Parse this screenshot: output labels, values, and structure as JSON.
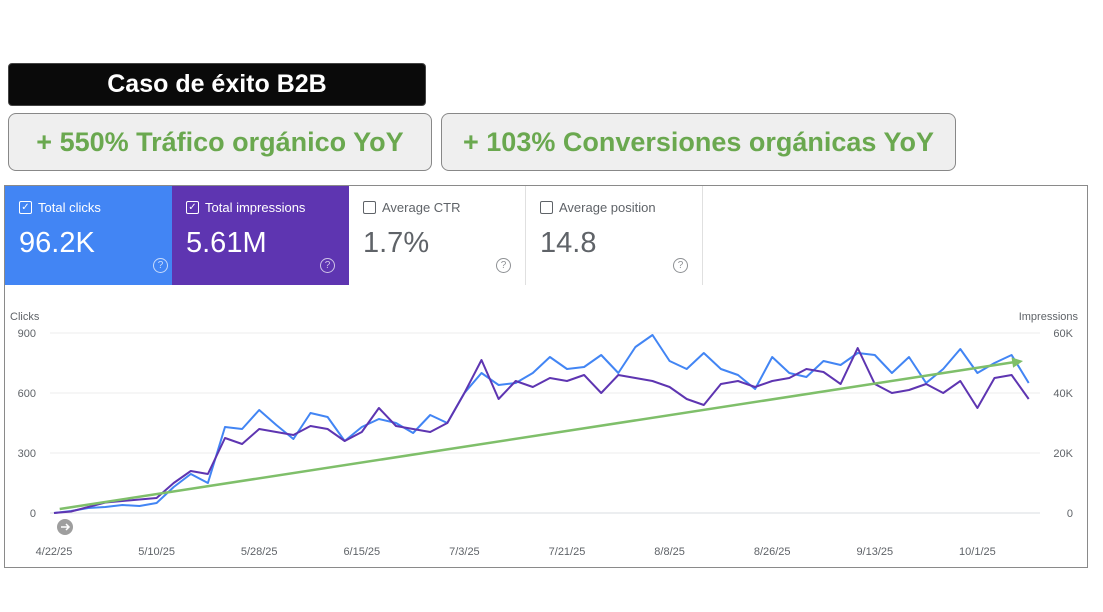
{
  "banner": {
    "title": "Caso de éxito B2B"
  },
  "kpis": [
    "+ 550% Tráfico orgánico YoY",
    "+ 103% Conversiones orgánicas YoY"
  ],
  "metrics": [
    {
      "label": "Total clicks",
      "value": "96.2K",
      "checked": true,
      "color": "#4285f4"
    },
    {
      "label": "Total impressions",
      "value": "5.61M",
      "checked": true,
      "color": "#5e35b1"
    },
    {
      "label": "Average CTR",
      "value": "1.7%",
      "checked": false
    },
    {
      "label": "Average position",
      "value": "14.8",
      "checked": false
    }
  ],
  "chart_data": {
    "type": "line",
    "ylabel": "Clicks",
    "y2label": "Impressions",
    "ylim": [
      0,
      900
    ],
    "y2lim": [
      0,
      60000
    ],
    "yticks": [
      "900",
      "600",
      "300",
      "0"
    ],
    "y2ticks": [
      "60K",
      "40K",
      "20K",
      "0"
    ],
    "xticks": [
      "4/22/25",
      "5/10/25",
      "5/28/25",
      "6/15/25",
      "7/3/25",
      "7/21/25",
      "8/8/25",
      "8/26/25",
      "9/13/25",
      "10/1/25"
    ],
    "x_step_days": 3,
    "series": [
      {
        "name": "Clicks",
        "axis": "left",
        "color": "#4285f4",
        "values": [
          0,
          10,
          25,
          30,
          40,
          35,
          50,
          130,
          195,
          150,
          430,
          420,
          515,
          440,
          370,
          500,
          480,
          360,
          430,
          470,
          450,
          400,
          490,
          450,
          600,
          700,
          640,
          650,
          700,
          780,
          720,
          730,
          790,
          700,
          830,
          890,
          760,
          720,
          800,
          720,
          690,
          620,
          780,
          700,
          680,
          760,
          740,
          800,
          790,
          700,
          780,
          650,
          720,
          820,
          700,
          750,
          790,
          650
        ]
      },
      {
        "name": "Impressions",
        "axis": "right",
        "color": "#5e35b1",
        "values": [
          0,
          500,
          2000,
          3500,
          4000,
          4500,
          5000,
          10000,
          14000,
          13000,
          25000,
          23000,
          28000,
          27000,
          26000,
          29000,
          28000,
          24000,
          27000,
          35000,
          29000,
          28000,
          27000,
          30000,
          40000,
          51000,
          38000,
          44000,
          42000,
          45000,
          44000,
          46000,
          40000,
          46000,
          45000,
          44000,
          42000,
          38000,
          36000,
          43000,
          44000,
          42000,
          44000,
          45000,
          48000,
          47000,
          43000,
          55000,
          43000,
          40000,
          41000,
          43000,
          40000,
          44000,
          35000,
          45000,
          46000,
          38000
        ]
      }
    ],
    "trend": {
      "color": "#7fbf6a",
      "from_day": 1,
      "from_clicks": 20,
      "to_day": 170,
      "to_clicks": 760
    }
  }
}
